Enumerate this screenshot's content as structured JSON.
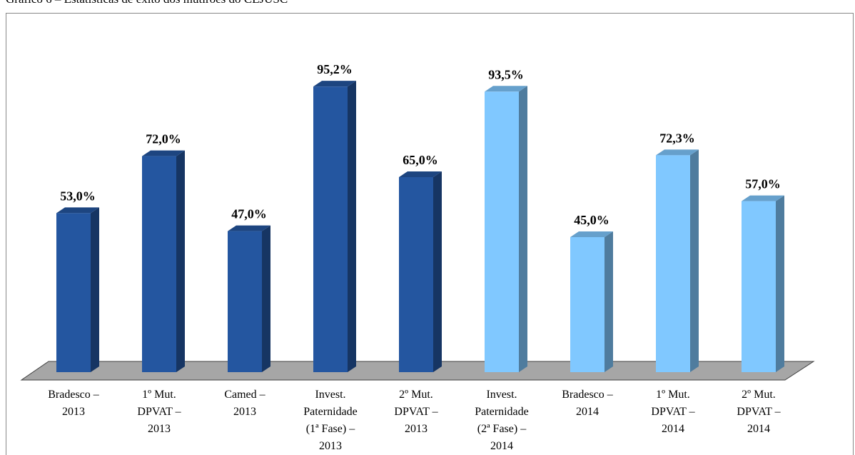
{
  "chart_data": {
    "type": "bar3d",
    "title": "Gráfico 6 – Estatísticas de êxito dos mutirões do CEJUSC",
    "categories": [
      [
        "Bradesco –",
        "2013"
      ],
      [
        "1º Mut.",
        "DPVAT –",
        "2013"
      ],
      [
        "Camed –",
        "2013"
      ],
      [
        "Invest.",
        "Paternidade",
        "(1ª Fase) –",
        "2013"
      ],
      [
        "2º Mut.",
        "DPVAT –",
        "2013"
      ],
      [
        "Invest.",
        "Paternidade",
        "(2ª Fase) –",
        "2014"
      ],
      [
        "Bradesco –",
        "2014"
      ],
      [
        "1º Mut.",
        "DPVAT –",
        "2014"
      ],
      [
        "2º Mut.",
        "DPVAT –",
        "2014"
      ]
    ],
    "values": [
      53,
      72,
      47,
      95.2,
      65,
      93.5,
      45,
      72.3,
      57
    ],
    "value_labels": [
      "53,0%",
      "72,0%",
      "47,0%",
      "95,2%",
      "65,0%",
      "93,5%",
      "45,0%",
      "72,3%",
      "57,0%"
    ],
    "colors": [
      "#2456a0",
      "#2456a0",
      "#2456a0",
      "#2456a0",
      "#2456a0",
      "#80c8ff",
      "#80c8ff",
      "#80c8ff",
      "#80c8ff"
    ]
  }
}
